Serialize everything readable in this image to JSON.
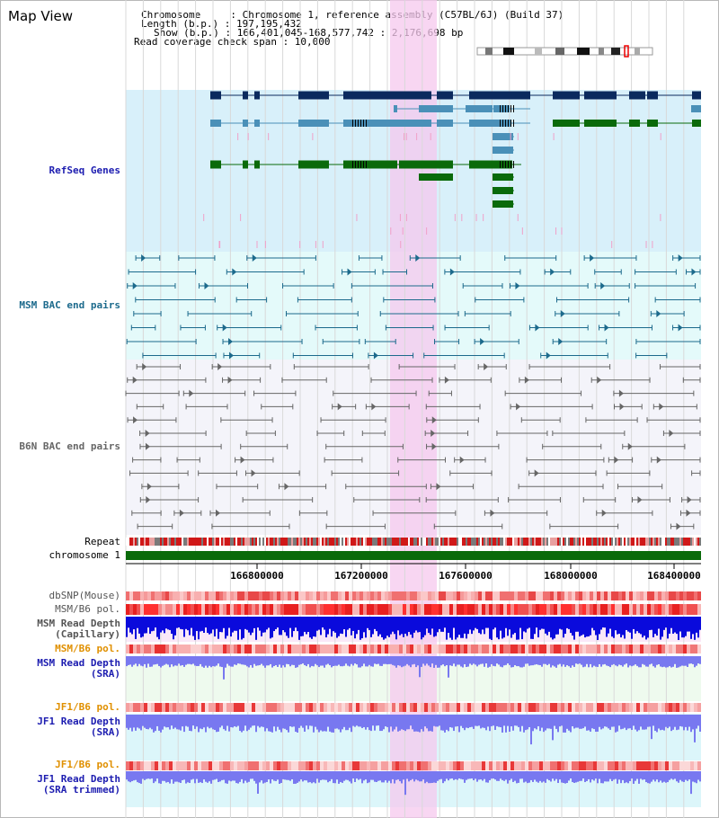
{
  "header": {
    "title": "Map View",
    "info": [
      "Chromosome     : Chromosome 1, reference assembly (C57BL/6J) (Build 37)",
      "Length (b.p.) : 197,195,432",
      "Show (b.p.) : 166,401,045-168,577,742 : 2,176,698 bp",
      "Read coverage check span : 10,000"
    ]
  },
  "tracks": {
    "refseq": "RefSeq Genes",
    "msm_bac": "MSM BAC end pairs",
    "b6n_bac": "B6N BAC end pairs",
    "repeat": "Repeat",
    "chromosome": "chromosome 1",
    "dbsnp": "dbSNP(Mouse)",
    "msm_b6_pol_1": "MSM/B6 pol.",
    "msm_read_depth_cap_1": "MSM Read Depth",
    "msm_read_depth_cap_2": "(Capillary)",
    "msm_b6_pol_2": "MSM/B6 pol.",
    "msm_read_depth_sra_1": "MSM Read Depth",
    "msm_read_depth_sra_2": "(SRA)",
    "jf1_b6_pol_1": "JF1/B6 pol.",
    "jf1_read_depth_sra_1": "JF1 Read Depth",
    "jf1_read_depth_sra_2": "(SRA)",
    "jf1_b6_pol_2": "JF1/B6 pol.",
    "jf1_read_depth_trim_1": "JF1 Read Depth",
    "jf1_read_depth_trim_2": "(SRA trimmed)"
  },
  "axis": {
    "ticks": [
      "166800000",
      "167200000",
      "167600000",
      "168000000",
      "168400000"
    ]
  },
  "colors": {
    "gene_dark": "#0b2a5e",
    "gene_mid": "#4a90b8",
    "gene_green": "#0a6a0a",
    "msm_bac": "#1c6a8c",
    "b6n_bac": "#666666",
    "highlight": "#f5c8ee",
    "depth_blue": "#0a0adc",
    "depth_light": "#7878f0"
  }
}
